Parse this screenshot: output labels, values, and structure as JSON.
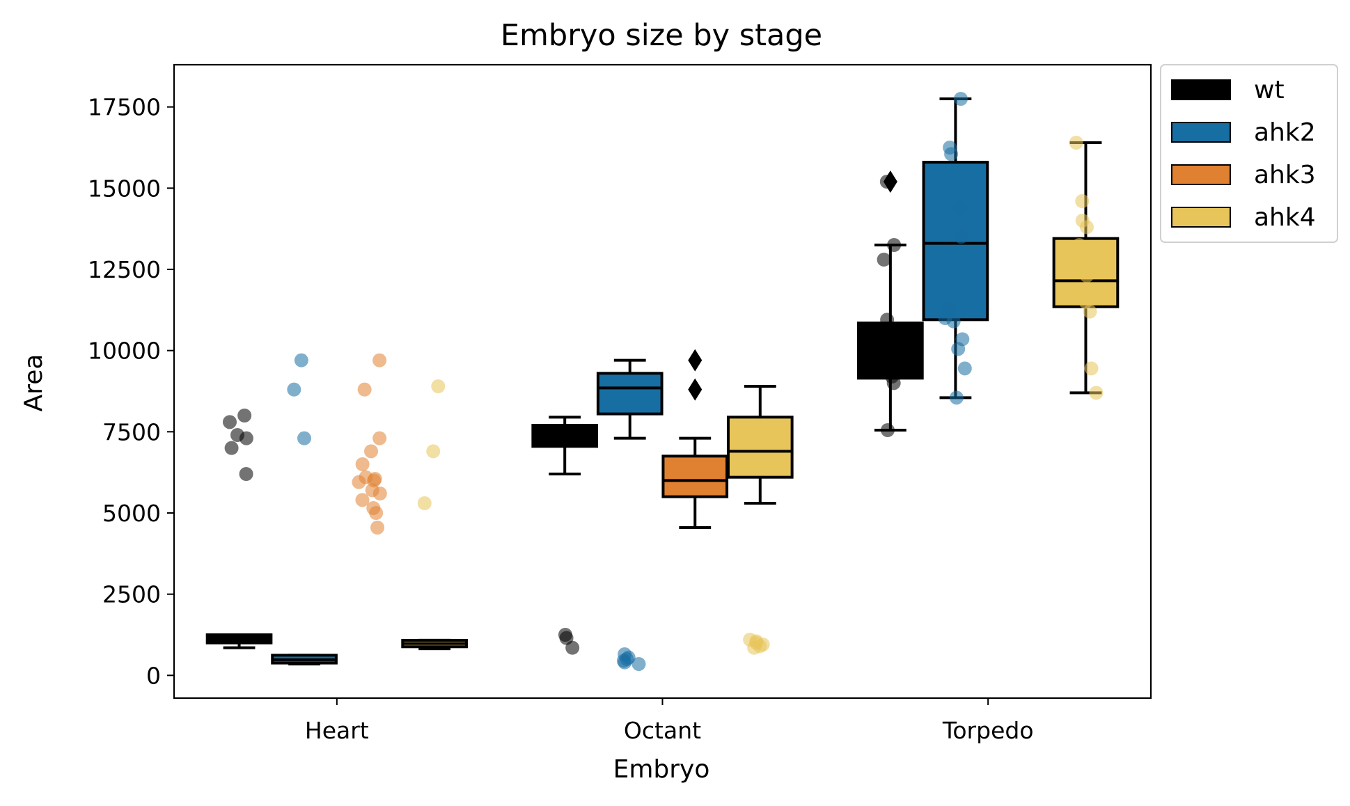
{
  "chart_data": {
    "type": "box",
    "title": "Embryo size by stage",
    "xlabel": "Embryo",
    "ylabel": "Area",
    "categories": [
      "Heart",
      "Octant",
      "Torpedo"
    ],
    "ylim": [
      -700,
      18800
    ],
    "yticks": [
      0,
      2500,
      5000,
      7500,
      10000,
      12500,
      15000,
      17500
    ],
    "ytick_labels": [
      "0",
      "2500",
      "5000",
      "7500",
      "10000",
      "12500",
      "15000",
      "17500"
    ],
    "legend_position": "outside-top-right",
    "grid": false,
    "series": [
      {
        "name": "wt",
        "color": "#000000",
        "box": [
          {
            "category": "Heart",
            "min": 850,
            "q1": 1000,
            "median": 1100,
            "q3": 1250,
            "max": 1250,
            "outliers": []
          },
          {
            "category": "Octant",
            "min": 6200,
            "q1": 7050,
            "median": 7400,
            "q3": 7700,
            "max": 7950,
            "outliers": []
          },
          {
            "category": "Torpedo",
            "min": 7550,
            "q1": 9150,
            "median": 10050,
            "q3": 10850,
            "max": 13250,
            "outliers": [
              15200
            ]
          }
        ],
        "points": [
          {
            "category": "Heart",
            "values": [
              8000,
              7800,
              7400,
              7300,
              7000,
              6200
            ]
          },
          {
            "category": "Octant",
            "values": [
              1250,
              1150,
              850
            ]
          },
          {
            "category": "Torpedo",
            "values": [
              15200,
              13250,
              12800,
              10950,
              10500,
              9500,
              9200,
              9000,
              7550
            ]
          }
        ]
      },
      {
        "name": "ahk2",
        "color": "#176EA2",
        "box": [
          {
            "category": "Heart",
            "min": 350,
            "q1": 380,
            "median": 480,
            "q3": 620,
            "max": 620,
            "outliers": []
          },
          {
            "category": "Octant",
            "min": 7300,
            "q1": 8050,
            "median": 8850,
            "q3": 9300,
            "max": 9700,
            "outliers": []
          },
          {
            "category": "Torpedo",
            "min": 8550,
            "q1": 10950,
            "median": 13300,
            "q3": 15800,
            "max": 17750,
            "outliers": []
          }
        ],
        "points": [
          {
            "category": "Heart",
            "values": [
              9700,
              8800,
              7300
            ]
          },
          {
            "category": "Octant",
            "values": [
              650,
              550,
              500,
              450,
              400,
              350
            ]
          },
          {
            "category": "Torpedo",
            "values": [
              17750,
              16250,
              16050,
              14400,
              13500,
              11300,
              11000,
              10900,
              10350,
              10050,
              9450,
              8550
            ]
          }
        ]
      },
      {
        "name": "ahk3",
        "color": "#E08131",
        "box": [
          {
            "category": "Octant",
            "min": 4550,
            "q1": 5500,
            "median": 6000,
            "q3": 6750,
            "max": 7300,
            "outliers": [
              9700,
              8800
            ]
          }
        ],
        "points": [
          {
            "category": "Heart",
            "values": [
              9700,
              8800,
              7300,
              6900,
              6500,
              6100,
              6050,
              6000,
              5950,
              5700,
              5600,
              5400,
              5150,
              5000,
              4550
            ]
          }
        ]
      },
      {
        "name": "ahk4",
        "color": "#E8C55A",
        "box": [
          {
            "category": "Heart",
            "min": 820,
            "q1": 880,
            "median": 980,
            "q3": 1080,
            "max": 1080,
            "outliers": []
          },
          {
            "category": "Octant",
            "min": 5300,
            "q1": 6100,
            "median": 6900,
            "q3": 7950,
            "max": 8900,
            "outliers": []
          },
          {
            "category": "Torpedo",
            "min": 8700,
            "q1": 11350,
            "median": 12150,
            "q3": 13450,
            "max": 16400,
            "outliers": []
          }
        ],
        "points": [
          {
            "category": "Heart",
            "values": [
              8900,
              6900,
              5300
            ]
          },
          {
            "category": "Octant",
            "values": [
              1100,
              1050,
              1000,
              950,
              900,
              850
            ]
          },
          {
            "category": "Torpedo",
            "values": [
              16400,
              14600,
              14000,
              13800,
              13250,
              12700,
              12500,
              12300,
              11800,
              11500,
              11200,
              9450,
              8700
            ]
          }
        ]
      }
    ]
  }
}
